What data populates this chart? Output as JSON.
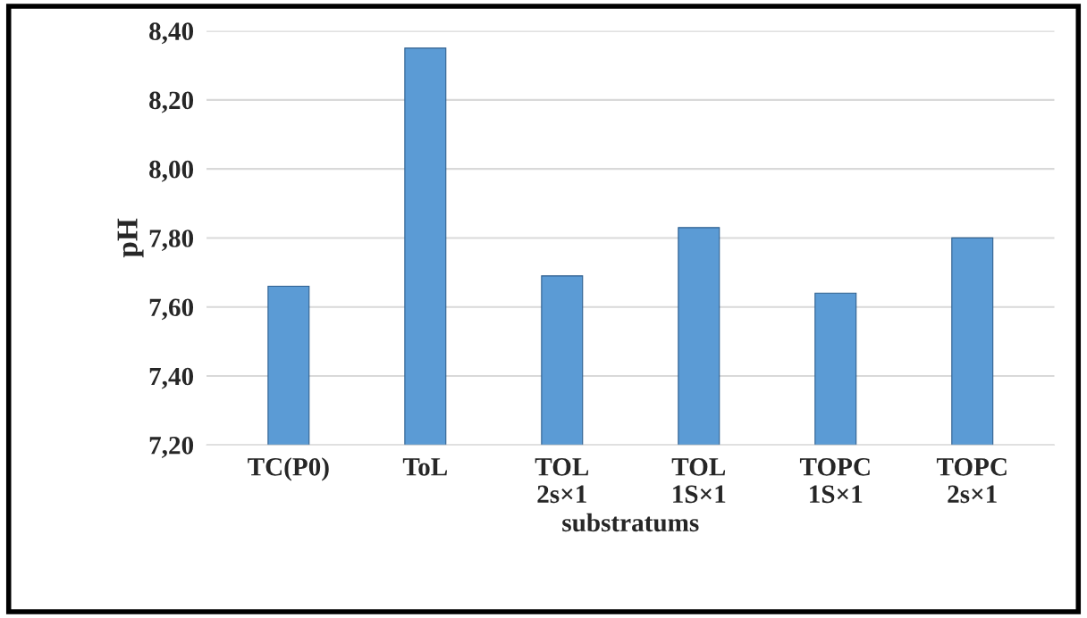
{
  "chart_data": {
    "type": "bar",
    "xlabel": "substratums",
    "ylabel": "pH",
    "categories": [
      "TC(P0)",
      "ToL",
      "TOL\n2s×1",
      "TOL\n1S×1",
      "TOPC\n1S×1",
      "TOPC\n2s×1"
    ],
    "values": [
      7.66,
      8.35,
      7.69,
      7.83,
      7.64,
      7.8
    ],
    "color": "#5b9bd5",
    "ylim": [
      7.2,
      8.4
    ],
    "yticks": [
      {
        "value": 7.2,
        "label": "7,20"
      },
      {
        "value": 7.4,
        "label": "7,40"
      },
      {
        "value": 7.6,
        "label": "7,60"
      },
      {
        "value": 7.8,
        "label": "7,80"
      },
      {
        "value": 8.0,
        "label": "8,00"
      },
      {
        "value": 8.2,
        "label": "8,20"
      },
      {
        "value": 8.4,
        "label": "8,40"
      }
    ],
    "grid": "y",
    "legend": false
  }
}
